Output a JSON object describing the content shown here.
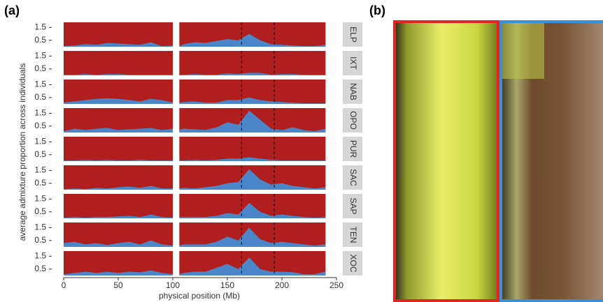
{
  "panel_labels": [
    "(a)",
    "(b)"
  ],
  "chart_data": {
    "type": "area",
    "xlabel": "physical position (Mb)",
    "ylabel": "average admixture proportion across individuals",
    "x": [
      0,
      10,
      20,
      30,
      40,
      50,
      60,
      70,
      80,
      90,
      100,
      103,
      106,
      110,
      120,
      130,
      140,
      150,
      160,
      170,
      180,
      190,
      200,
      210,
      220,
      230,
      240
    ],
    "xlim": [
      0,
      250
    ],
    "xticks": [
      0,
      50,
      100,
      150,
      200,
      250
    ],
    "ylim": [
      0,
      1.9
    ],
    "yticks": [
      0.5,
      1.5
    ],
    "area_color": "#4a86c8",
    "fill_color": "#b01e1e",
    "vlines": [
      163,
      193
    ],
    "facets": [
      {
        "name": "ELP",
        "values": [
          0.05,
          0.1,
          0.2,
          0.15,
          0.3,
          0.25,
          0.2,
          0.15,
          0.35,
          0.05,
          0.1,
          null,
          0.05,
          0.2,
          0.35,
          0.3,
          0.45,
          0.6,
          0.5,
          1.0,
          0.5,
          0.2,
          0.15,
          0.1,
          0.05,
          0.05,
          0.15
        ]
      },
      {
        "name": "IXT",
        "values": [
          0.05,
          0.05,
          0.1,
          0.05,
          0.1,
          0.1,
          0.05,
          0.05,
          0.05,
          0.05,
          0.05,
          null,
          0.05,
          0.05,
          0.1,
          0.05,
          0.05,
          0.15,
          0.1,
          0.2,
          0.2,
          0.05,
          0.1,
          0.1,
          0.05,
          0.05,
          0.05
        ]
      },
      {
        "name": "NAB",
        "values": [
          0.1,
          0.2,
          0.3,
          0.4,
          0.45,
          0.4,
          0.3,
          0.2,
          0.4,
          0.3,
          0.1,
          null,
          0.1,
          0.15,
          0.2,
          0.1,
          0.1,
          0.3,
          0.3,
          0.5,
          0.3,
          0.2,
          0.15,
          0.1,
          0.05,
          0.05,
          0.05
        ]
      },
      {
        "name": "OPO",
        "values": [
          0.1,
          0.3,
          0.2,
          0.3,
          0.35,
          0.2,
          0.25,
          0.3,
          0.35,
          0.2,
          0.3,
          null,
          0.2,
          0.3,
          0.25,
          0.2,
          0.4,
          0.8,
          0.6,
          1.7,
          1.0,
          0.3,
          0.2,
          0.4,
          0.2,
          0.1,
          0.3
        ]
      },
      {
        "name": "PUR",
        "values": [
          0.05,
          0.05,
          0.1,
          0.05,
          0.1,
          0.05,
          0.05,
          0.1,
          0.05,
          0.05,
          0.05,
          null,
          0.05,
          0.05,
          0.1,
          0.05,
          0.1,
          0.2,
          0.2,
          0.3,
          0.2,
          0.1,
          0.05,
          0.05,
          0.05,
          0.05,
          0.05
        ]
      },
      {
        "name": "SAC",
        "values": [
          0.05,
          0.1,
          0.05,
          0.15,
          0.1,
          0.2,
          0.25,
          0.15,
          0.3,
          0.1,
          0.1,
          null,
          0.1,
          0.15,
          0.1,
          0.2,
          0.3,
          0.5,
          0.6,
          1.6,
          0.8,
          0.4,
          0.5,
          0.3,
          0.2,
          0.1,
          0.2
        ]
      },
      {
        "name": "SAP",
        "values": [
          0.05,
          0.1,
          0.05,
          0.1,
          0.1,
          0.15,
          0.2,
          0.1,
          0.3,
          0.1,
          0.05,
          null,
          0.1,
          0.1,
          0.1,
          0.1,
          0.2,
          0.4,
          0.3,
          1.2,
          0.5,
          0.2,
          0.3,
          0.2,
          0.1,
          0.05,
          0.1
        ]
      },
      {
        "name": "TEN",
        "values": [
          0.3,
          0.4,
          0.2,
          0.3,
          0.15,
          0.3,
          0.4,
          0.2,
          0.5,
          0.2,
          0.1,
          null,
          0.1,
          0.2,
          0.2,
          0.2,
          0.4,
          0.8,
          0.5,
          1.5,
          0.6,
          0.3,
          0.4,
          0.3,
          0.2,
          0.1,
          0.2
        ]
      },
      {
        "name": "XOC",
        "values": [
          0.1,
          0.2,
          0.3,
          0.2,
          0.3,
          0.2,
          0.3,
          0.25,
          0.4,
          0.2,
          0.1,
          null,
          0.1,
          0.2,
          0.3,
          0.3,
          0.6,
          0.9,
          0.5,
          1.4,
          0.5,
          0.3,
          0.3,
          0.25,
          0.1,
          0.1,
          0.3
        ]
      }
    ]
  }
}
